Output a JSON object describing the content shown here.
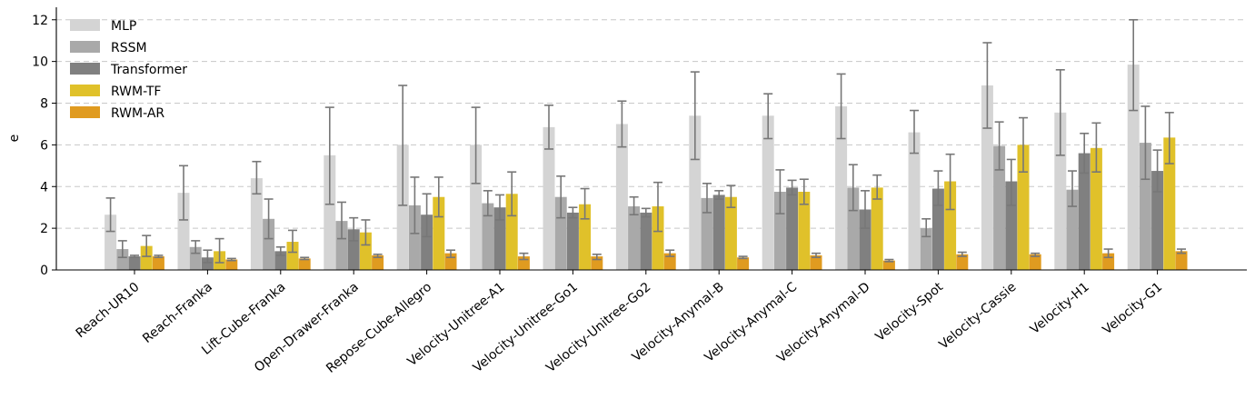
{
  "chart_data": {
    "type": "bar",
    "title": "",
    "xlabel": "",
    "ylabel": "e",
    "ylim": [
      0,
      12.6
    ],
    "yticks": [
      0,
      2,
      4,
      6,
      8,
      10,
      12
    ],
    "grid": true,
    "legend_position": "top-left",
    "categories": [
      "Reach-UR10",
      "Reach-Franka",
      "Lift-Cube-Franka",
      "Open-Drawer-Franka",
      "Repose-Cube-Allegro",
      "Velocity-Unitree-A1",
      "Velocity-Unitree-Go1",
      "Velocity-Unitree-Go2",
      "Velocity-Anymal-B",
      "Velocity-Anymal-C",
      "Velocity-Anymal-D",
      "Velocity-Spot",
      "Velocity-Cassie",
      "Velocity-H1",
      "Velocity-G1"
    ],
    "series": [
      {
        "name": "MLP",
        "color": "#d4d4d4",
        "values": [
          2.65,
          3.7,
          4.4,
          5.5,
          6.0,
          6.0,
          6.85,
          7.0,
          7.4,
          7.4,
          7.85,
          6.6,
          8.85,
          7.55,
          9.85
        ],
        "err_low": [
          1.85,
          2.4,
          3.65,
          3.15,
          3.1,
          4.15,
          5.8,
          5.9,
          5.3,
          6.3,
          6.3,
          5.6,
          6.8,
          5.5,
          7.65
        ],
        "err_high": [
          3.45,
          5.0,
          5.2,
          7.8,
          8.85,
          7.8,
          7.9,
          8.1,
          9.5,
          8.45,
          9.4,
          7.65,
          10.9,
          9.6,
          12.0
        ]
      },
      {
        "name": "RSSM",
        "color": "#a9a9a9",
        "values": [
          1.0,
          1.1,
          2.45,
          2.35,
          3.1,
          3.2,
          3.5,
          3.05,
          3.45,
          3.75,
          3.95,
          2.0,
          5.95,
          3.85,
          6.1
        ],
        "err_low": [
          0.6,
          0.8,
          1.5,
          1.5,
          1.75,
          2.6,
          2.5,
          2.65,
          2.75,
          2.7,
          2.85,
          1.6,
          4.8,
          3.05,
          4.35
        ],
        "err_high": [
          1.4,
          1.4,
          3.4,
          3.25,
          4.45,
          3.8,
          4.5,
          3.5,
          4.15,
          4.8,
          5.05,
          2.45,
          7.1,
          4.75,
          7.85
        ]
      },
      {
        "name": "Transformer",
        "color": "#808080",
        "values": [
          0.65,
          0.6,
          0.9,
          1.95,
          2.65,
          3.0,
          2.75,
          2.75,
          3.6,
          3.95,
          2.9,
          3.9,
          4.25,
          5.6,
          4.75
        ],
        "err_low": [
          0.6,
          0.35,
          0.7,
          1.4,
          1.6,
          2.4,
          2.5,
          2.55,
          3.4,
          3.6,
          2.0,
          3.1,
          3.1,
          4.65,
          3.75
        ],
        "err_high": [
          0.7,
          0.95,
          1.1,
          2.5,
          3.65,
          3.6,
          3.0,
          2.95,
          3.8,
          4.3,
          3.8,
          4.75,
          5.3,
          6.55,
          5.75
        ]
      },
      {
        "name": "RWM-TF",
        "color": "#e0c12a",
        "values": [
          1.15,
          0.9,
          1.35,
          1.8,
          3.5,
          3.65,
          3.15,
          3.05,
          3.5,
          3.75,
          3.95,
          4.25,
          6.0,
          5.85,
          6.35
        ],
        "err_low": [
          0.65,
          0.35,
          0.85,
          1.2,
          2.55,
          2.6,
          2.45,
          1.85,
          3.0,
          3.15,
          3.4,
          2.9,
          4.7,
          4.7,
          5.1
        ],
        "err_high": [
          1.65,
          1.5,
          1.9,
          2.4,
          4.45,
          4.7,
          3.9,
          4.2,
          4.05,
          4.35,
          4.55,
          5.55,
          7.3,
          7.05,
          7.55
        ]
      },
      {
        "name": "RWM-AR",
        "color": "#e09b20",
        "values": [
          0.65,
          0.5,
          0.55,
          0.7,
          0.8,
          0.65,
          0.65,
          0.8,
          0.6,
          0.7,
          0.45,
          0.75,
          0.75,
          0.8,
          0.9
        ],
        "err_low": [
          0.6,
          0.45,
          0.5,
          0.6,
          0.6,
          0.5,
          0.5,
          0.65,
          0.55,
          0.6,
          0.4,
          0.65,
          0.65,
          0.6,
          0.8
        ],
        "err_high": [
          0.7,
          0.55,
          0.6,
          0.75,
          0.95,
          0.8,
          0.75,
          0.95,
          0.65,
          0.8,
          0.5,
          0.85,
          0.8,
          1.0,
          1.0
        ]
      }
    ]
  }
}
